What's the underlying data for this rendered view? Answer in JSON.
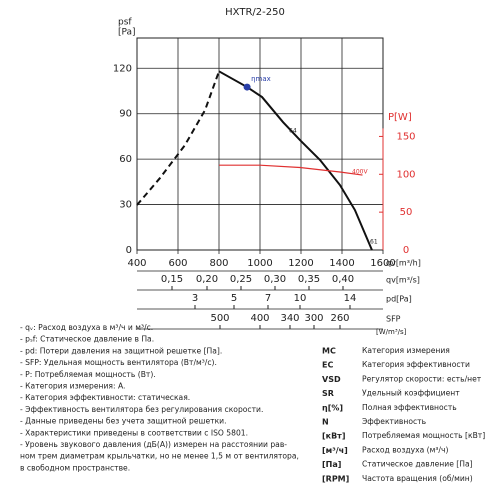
{
  "chart_data": {
    "type": "line",
    "title": "HXTR/2-250",
    "ylabel": "psf",
    "ylabel_unit": "[Pa]",
    "y2label": "P[W]",
    "xlabel": "qv[m³/h]",
    "xlim": [
      400,
      1600
    ],
    "xticks": [
      400,
      600,
      800,
      1000,
      1200,
      1400,
      1600
    ],
    "ylim": [
      0,
      140
    ],
    "yticks": [
      0,
      30,
      60,
      90,
      120
    ],
    "y2lim": [
      0,
      280
    ],
    "y2ticks": [
      0,
      50,
      100,
      150
    ],
    "y2color": "#e03030",
    "grid": true,
    "series": [
      {
        "color": "#111111",
        "style": "solid",
        "x": [
          800,
          937,
          1010,
          1112,
          1195,
          1293,
          1390,
          1463,
          1546
        ],
        "values": [
          118,
          107.6,
          101,
          84.5,
          72.6,
          59.4,
          42.9,
          26.4,
          0
        ]
      },
      {
        "color": "#111111",
        "style": "dashed",
        "x": [
          400,
          512,
          634,
          732,
          800
        ],
        "values": [
          29.7,
          47.5,
          69.3,
          92.4,
          118
        ]
      },
      {
        "color": "#e03030",
        "style": "solid",
        "axis": "y2",
        "x": [
          800,
          1000,
          1195,
          1390,
          1500
        ],
        "values": [
          112,
          112,
          109,
          103,
          99
        ]
      }
    ],
    "marker": {
      "x": 937,
      "y": 107.6,
      "label": "ηmax",
      "color": "#2a3fa8"
    },
    "annotations": [
      "64",
      "400V",
      "61"
    ],
    "scales": [
      {
        "label": "qv[m³/s]",
        "ticks": [
          "0,15",
          "0,20",
          "0,25",
          "0,30",
          "0,35",
          "0,40"
        ]
      },
      {
        "label": "pd[Pa]",
        "ticks": [
          "3",
          "5",
          "7",
          "10",
          "14"
        ]
      },
      {
        "label": "SFP",
        "unit": "[W/m³/s]",
        "ticks": [
          "500",
          "400",
          "340",
          "300",
          "260"
        ]
      }
    ]
  },
  "notes": [
    "- qᵥ: Расход воздуха в м³/ч и м³/с.",
    "- pₛf: Статическое давление в Па.",
    "- pd: Потери давления на защитной решетке [Па].",
    "- SFP: Удельная мощность вентилятора (Вт/м³/с).",
    "- P: Потребляемая мощность (Вт).",
    "- Категория измерения: A.",
    "- Категория эффективности: статическая.",
    "- Эффективность вентилятора без регулирования скорости.",
    "- Данные приведены без учета защитной решетки.",
    "- Характеристики приведены в соответствии с ISO 5801.",
    "- Уровень звукового давления (дБ(A)) измерен на расстоянии рав-",
    "ном трем диаметрам крыльчатки, но не менее 1,5 м от вентилятора,",
    "в свободном пространстве."
  ],
  "abbreviations": [
    [
      "MC",
      "Категория измерения"
    ],
    [
      "EC",
      "Категория эффективности"
    ],
    [
      "VSD",
      "Регулятор скорости: есть/нет"
    ],
    [
      "SR",
      "Удельный коэффициент"
    ],
    [
      "η[%]",
      "Полная эффективность"
    ],
    [
      "N",
      "Эффективность"
    ],
    [
      "[кВт]",
      "Потребляемая мощность [кВт]"
    ],
    [
      "[м³/ч]",
      "Расход воздуха (м³/ч)"
    ],
    [
      "[Па]",
      "Статическое давление [Па]"
    ],
    [
      "[RPM]",
      "Частота вращения (об/мин)"
    ]
  ]
}
